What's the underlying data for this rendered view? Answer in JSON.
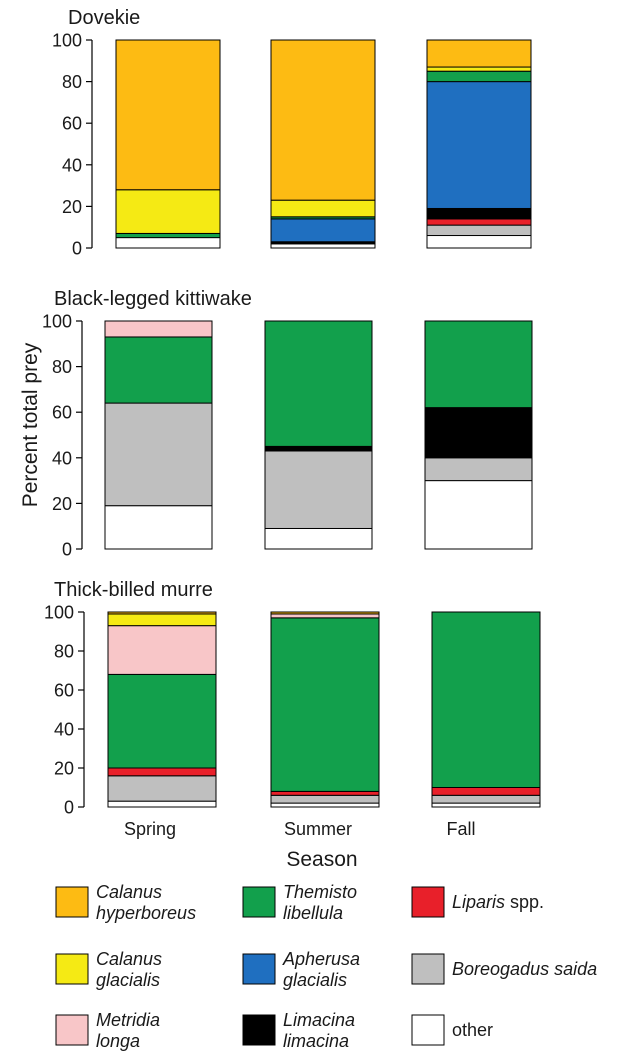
{
  "chart_data": [
    {
      "type": "bar",
      "stacked": true,
      "title": "Dovekie",
      "categories": [
        "Spring",
        "Summer",
        "Fall"
      ],
      "ylim": [
        0,
        100
      ],
      "yticks": [
        0,
        20,
        40,
        60,
        80,
        100
      ],
      "series": [
        {
          "name": "other",
          "values": [
            5,
            2,
            6
          ]
        },
        {
          "name": "Boreogadus saida",
          "values": [
            0,
            0,
            5
          ]
        },
        {
          "name": "Liparis spp.",
          "values": [
            0,
            0,
            3
          ]
        },
        {
          "name": "Limacina limacina",
          "values": [
            0,
            1,
            5
          ]
        },
        {
          "name": "Apherusa glacialis",
          "values": [
            0,
            11,
            61
          ]
        },
        {
          "name": "Themisto libellula",
          "values": [
            2,
            1,
            5
          ]
        },
        {
          "name": "Metridia longa",
          "values": [
            0,
            0,
            0
          ]
        },
        {
          "name": "Calanus glacialis",
          "values": [
            21,
            8,
            2
          ]
        },
        {
          "name": "Calanus hyperboreus",
          "values": [
            72,
            77,
            13
          ]
        }
      ]
    },
    {
      "type": "bar",
      "stacked": true,
      "title": "Black-legged kittiwake",
      "categories": [
        "Spring",
        "Summer",
        "Fall"
      ],
      "ylim": [
        0,
        100
      ],
      "yticks": [
        0,
        20,
        40,
        60,
        80,
        100
      ],
      "series": [
        {
          "name": "other",
          "values": [
            19,
            9,
            30
          ]
        },
        {
          "name": "Boreogadus saida",
          "values": [
            45,
            34,
            10
          ]
        },
        {
          "name": "Liparis spp.",
          "values": [
            0,
            0,
            0
          ]
        },
        {
          "name": "Limacina limacina",
          "values": [
            0,
            2,
            22
          ]
        },
        {
          "name": "Apherusa glacialis",
          "values": [
            0,
            0,
            0
          ]
        },
        {
          "name": "Themisto libellula",
          "values": [
            29,
            55,
            38
          ]
        },
        {
          "name": "Metridia longa",
          "values": [
            7,
            0,
            0
          ]
        },
        {
          "name": "Calanus glacialis",
          "values": [
            0,
            0,
            0
          ]
        },
        {
          "name": "Calanus hyperboreus",
          "values": [
            0,
            0,
            0
          ]
        }
      ]
    },
    {
      "type": "bar",
      "stacked": true,
      "title": "Thick-billed murre",
      "categories": [
        "Spring",
        "Summer",
        "Fall"
      ],
      "ylim": [
        0,
        100
      ],
      "yticks": [
        0,
        20,
        40,
        60,
        80,
        100
      ],
      "series": [
        {
          "name": "other",
          "values": [
            3,
            2,
            2
          ]
        },
        {
          "name": "Boreogadus saida",
          "values": [
            13,
            4,
            4
          ]
        },
        {
          "name": "Liparis spp.",
          "values": [
            4,
            2,
            4
          ]
        },
        {
          "name": "Limacina limacina",
          "values": [
            0,
            0,
            0
          ]
        },
        {
          "name": "Apherusa glacialis",
          "values": [
            0,
            0,
            0
          ]
        },
        {
          "name": "Themisto libellula",
          "values": [
            48,
            89,
            90
          ]
        },
        {
          "name": "Metridia longa",
          "values": [
            25,
            2,
            0
          ]
        },
        {
          "name": "Calanus glacialis",
          "values": [
            6,
            0,
            0
          ]
        },
        {
          "name": "Calanus hyperboreus",
          "values": [
            1,
            1,
            0
          ]
        }
      ]
    }
  ],
  "ylabel": "Percent total prey",
  "xlabel": "Season",
  "colors": {
    "other": "#ffffff",
    "Boreogadus saida": "#bfbfbf",
    "Liparis spp.": "#e8202a",
    "Limacina limacina": "#000000",
    "Apherusa glacialis": "#1f6fc0",
    "Themisto libellula": "#12a04c",
    "Metridia longa": "#f8c6c8",
    "Calanus glacialis": "#f5ea14",
    "Calanus hyperboreus": "#fdbb13"
  },
  "legend": {
    "items": [
      {
        "key": "Calanus hyperboreus",
        "line1": "Calanus",
        "line2": "hyperboreus",
        "italic": true
      },
      {
        "key": "Themisto libellula",
        "line1": "Themisto",
        "line2": "libellula",
        "italic": true
      },
      {
        "key": "Liparis spp.",
        "italic_part": "Liparis",
        "plain_part": " spp."
      },
      {
        "key": "Calanus glacialis",
        "line1": "Calanus",
        "line2": "glacialis",
        "italic": true
      },
      {
        "key": "Apherusa glacialis",
        "line1": "Apherusa",
        "line2": "glacialis",
        "italic": true
      },
      {
        "key": "Boreogadus saida",
        "line1": "Boreogadus saida",
        "italic": true
      },
      {
        "key": "Metridia longa",
        "line1": "Metridia",
        "line2": "longa",
        "italic": true
      },
      {
        "key": "Limacina limacina",
        "line1": "Limacina",
        "line2": "limacina",
        "italic": true
      },
      {
        "key": "other",
        "line1": "other",
        "italic": false
      }
    ]
  }
}
